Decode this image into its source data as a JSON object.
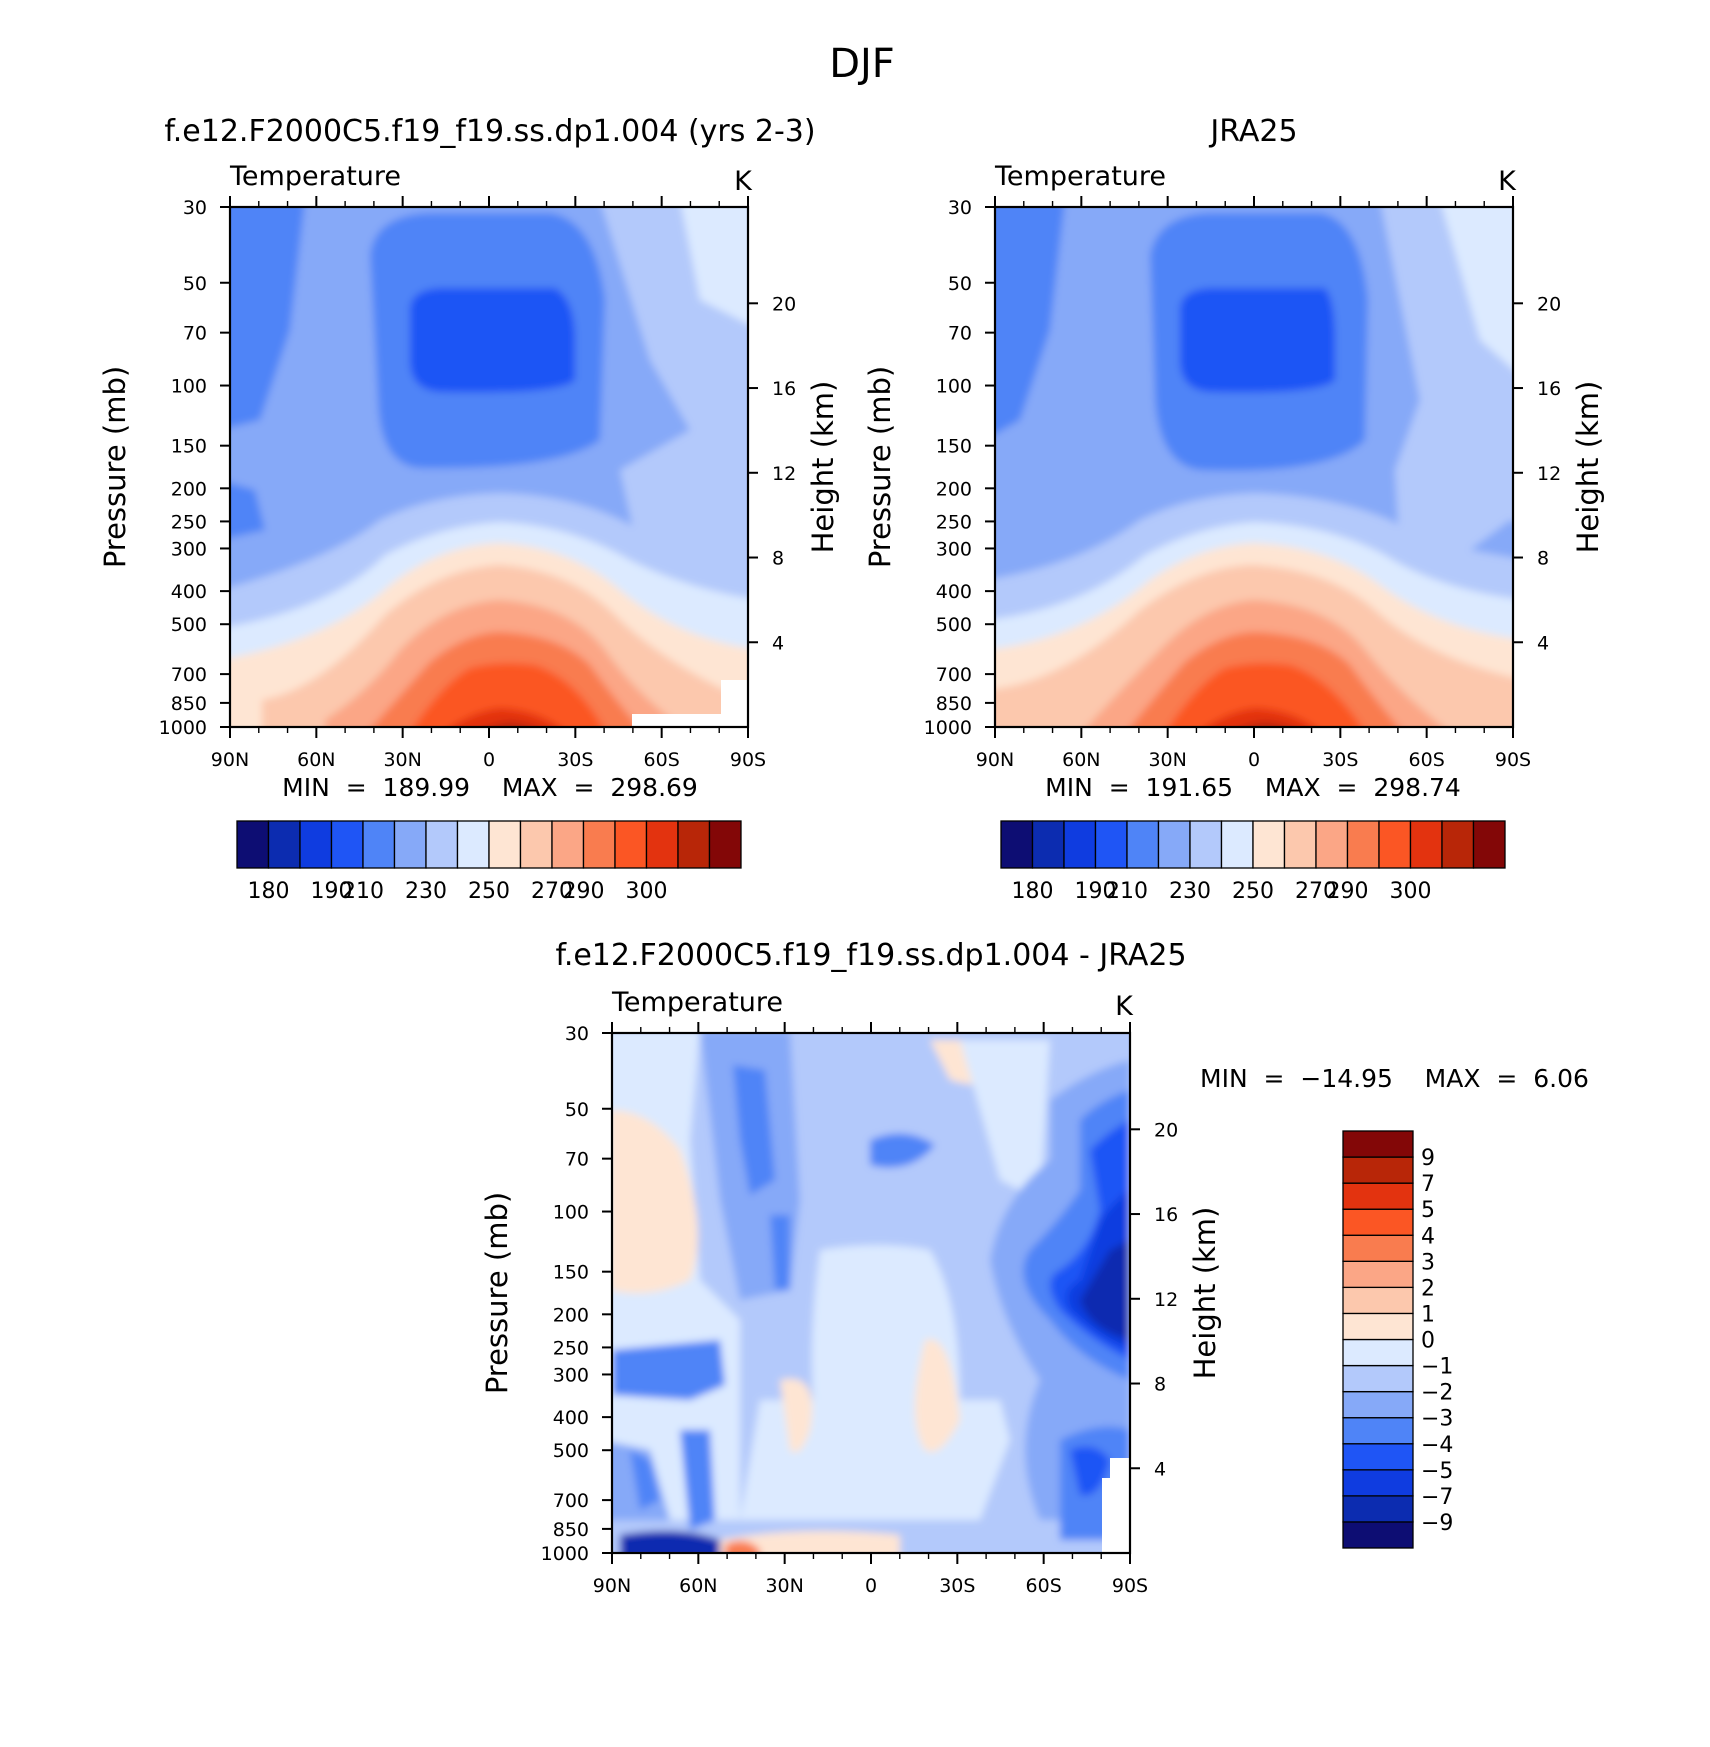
{
  "page_title": "DJF",
  "chart_data": [
    {
      "type": "heatmap",
      "title": "f.e12.F2000C5.f19_f19.ss.dp1.004 (yrs 2-3)",
      "subtitle": "Temperature",
      "units": "K",
      "ylabel": "Pressure (mb)",
      "ylabel_right": "Height (km)",
      "xlim": [
        90,
        -90
      ],
      "ylim": [
        1000,
        30
      ],
      "yscale": "log",
      "x_ticks": [
        "90N",
        "60N",
        "30N",
        "0",
        "30S",
        "60S",
        "90S"
      ],
      "y_ticks": [
        30,
        50,
        70,
        100,
        150,
        200,
        250,
        300,
        400,
        500,
        700,
        850,
        1000
      ],
      "y_right_ticks": [
        4,
        8,
        12,
        16,
        20
      ],
      "stats": "MIN = 189.99 MAX = 298.69",
      "colorbar": {
        "orientation": "horizontal",
        "levels": [
          180,
          190,
          200,
          210,
          220,
          230,
          240,
          250,
          260,
          270,
          280,
          290,
          300
        ],
        "labels": [
          "180",
          "190",
          "210",
          "230",
          "250",
          "270",
          "290",
          "300"
        ],
        "colors": [
          "#0d0d73",
          "#0c2cb0",
          "#0f3ce0",
          "#1f55f5",
          "#4f84f7",
          "#86a9f8",
          "#b3c9fb",
          "#dceaff",
          "#fee5d3",
          "#fcc8ad",
          "#fba686",
          "#f97c4f",
          "#fb5624",
          "#e3330f",
          "#b82608",
          "#830707"
        ]
      },
      "grid": false
    },
    {
      "type": "heatmap",
      "title": "JRA25",
      "subtitle": "Temperature",
      "units": "K",
      "ylabel": "Pressure (mb)",
      "ylabel_right": "Height (km)",
      "xlim": [
        90,
        -90
      ],
      "ylim": [
        1000,
        30
      ],
      "yscale": "log",
      "x_ticks": [
        "90N",
        "60N",
        "30N",
        "0",
        "30S",
        "60S",
        "90S"
      ],
      "y_ticks": [
        30,
        50,
        70,
        100,
        150,
        200,
        250,
        300,
        400,
        500,
        700,
        850,
        1000
      ],
      "y_right_ticks": [
        4,
        8,
        12,
        16,
        20
      ],
      "stats": "MIN = 191.65 MAX = 298.74",
      "colorbar": {
        "orientation": "horizontal",
        "levels": [
          180,
          190,
          200,
          210,
          220,
          230,
          240,
          250,
          260,
          270,
          280,
          290,
          300
        ],
        "labels": [
          "180",
          "190",
          "210",
          "230",
          "250",
          "270",
          "290",
          "300"
        ],
        "colors": [
          "#0d0d73",
          "#0c2cb0",
          "#0f3ce0",
          "#1f55f5",
          "#4f84f7",
          "#86a9f8",
          "#b3c9fb",
          "#dceaff",
          "#fee5d3",
          "#fcc8ad",
          "#fba686",
          "#f97c4f",
          "#fb5624",
          "#e3330f",
          "#b82608",
          "#830707"
        ]
      },
      "grid": false
    },
    {
      "type": "heatmap",
      "title": "f.e12.F2000C5.f19_f19.ss.dp1.004 - JRA25",
      "subtitle": "Temperature",
      "units": "K",
      "ylabel": "Pressure (mb)",
      "ylabel_right": "Height (km)",
      "xlim": [
        90,
        -90
      ],
      "ylim": [
        1000,
        30
      ],
      "yscale": "log",
      "x_ticks": [
        "90N",
        "60N",
        "30N",
        "0",
        "30S",
        "60S",
        "90S"
      ],
      "y_ticks": [
        30,
        50,
        70,
        100,
        150,
        200,
        250,
        300,
        400,
        500,
        700,
        850,
        1000
      ],
      "y_right_ticks": [
        4,
        8,
        12,
        16,
        20
      ],
      "stats": "MIN = -14.95 MAX = 6.06",
      "colorbar": {
        "orientation": "vertical",
        "levels": [
          -9,
          -7,
          -5,
          -4,
          -3,
          -2,
          -1,
          0,
          1,
          2,
          3,
          4,
          5,
          7,
          9
        ],
        "labels": [
          "9",
          "7",
          "5",
          "4",
          "3",
          "2",
          "1",
          "0",
          "-1",
          "-2",
          "-3",
          "-4",
          "-5",
          "-7",
          "-9"
        ],
        "colors": [
          "#0d0d73",
          "#0c2cb0",
          "#0f3ce0",
          "#1f55f5",
          "#4f84f7",
          "#86a9f8",
          "#b3c9fb",
          "#dceaff",
          "#fee5d3",
          "#fcc8ad",
          "#fba686",
          "#f97c4f",
          "#fb5624",
          "#e3330f",
          "#b82608",
          "#830707"
        ]
      },
      "grid": false
    }
  ]
}
